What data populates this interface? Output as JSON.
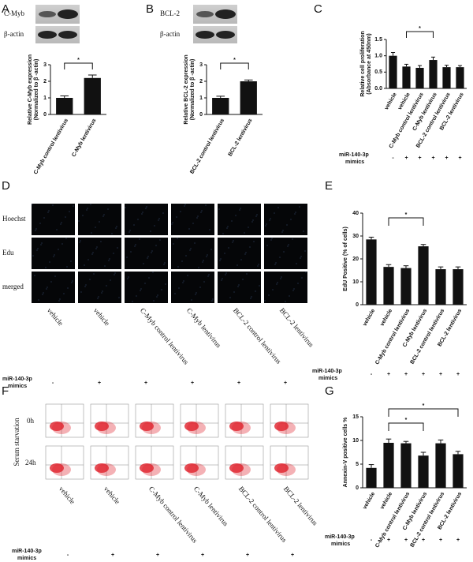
{
  "panels": {
    "letters": [
      "A",
      "B",
      "C",
      "D",
      "E",
      "F",
      "G"
    ]
  },
  "blots": [
    {
      "labels": [
        "C-Myb",
        "β-actin"
      ]
    },
    {
      "labels": [
        "BCL-2",
        "β-actin"
      ]
    }
  ],
  "edu_images": {
    "rows": [
      "Hoechst",
      "Edu",
      "merged"
    ],
    "columns": [
      "vehicle",
      "vehicle",
      "C-Myb control lentivirus",
      "C-Myb lentivirus",
      "BCL-2 control lentivirus",
      "BCL-2 lentivirus"
    ],
    "treatment_label": [
      "miR-140-3p",
      "mimics"
    ],
    "treatment": [
      "-",
      "+",
      "+",
      "+",
      "+",
      "+"
    ]
  },
  "flow_images": {
    "row_title": "Serum starvation",
    "rows": [
      "0h",
      "24h"
    ],
    "columns": [
      "vehicle",
      "vehicle",
      "C-Myb control lentivirus",
      "C-Myb lentivirus",
      "BCL-2 control lentivirus",
      "BCL-2 lentivirus"
    ],
    "treatment_label": [
      "miR-140-3p",
      "mimics"
    ],
    "treatment": [
      "-",
      "+",
      "+",
      "+",
      "+",
      "+"
    ]
  },
  "chart_data": [
    {
      "type": "bar",
      "ylabel": [
        "Relative C-Myb expression",
        "(Normalized to β -actin)"
      ],
      "categories": [
        "C-Myb control lentivirus",
        "C-Myb lentivirus"
      ],
      "values": [
        1.0,
        2.2
      ],
      "errors": [
        0.12,
        0.18
      ],
      "color": "#111111",
      "ylim": [
        0,
        3
      ],
      "yticks": [
        0,
        1,
        2,
        3
      ],
      "significance": [
        "*"
      ]
    },
    {
      "type": "bar",
      "ylabel": [
        "Relative BCL-2 expression",
        "(Normalized to β -actin)"
      ],
      "categories": [
        "BCL-2 control lentivirus",
        "BCL-2 lentivirus"
      ],
      "values": [
        1.0,
        2.0
      ],
      "errors": [
        0.1,
        0.08
      ],
      "color": "#111111",
      "ylim": [
        0,
        3
      ],
      "yticks": [
        0,
        1,
        2,
        3
      ],
      "significance": [
        "*"
      ]
    },
    {
      "type": "bar",
      "ylabel": [
        "Relative cell proliferation",
        "(Absorbance at 450nm)"
      ],
      "categories": [
        "vehicle",
        "vehicle",
        "C-Myb control lentivirus",
        "C-Myb lentivirus",
        "BCL-2 control lentivirus",
        "BCL-2 lentivirus"
      ],
      "values": [
        1.0,
        0.67,
        0.63,
        0.87,
        0.65,
        0.65
      ],
      "errors": [
        0.1,
        0.07,
        0.07,
        0.09,
        0.06,
        0.05
      ],
      "color": "#111111",
      "ylim": [
        0,
        1.5
      ],
      "yticks": [
        {
          "value": 0,
          "label": "0.0"
        },
        {
          "value": 0.5,
          "label": "0.5"
        },
        {
          "value": 1,
          "label": "1.0"
        },
        {
          "value": 1.5,
          "label": "1.5"
        }
      ],
      "significance": [
        "*"
      ],
      "treatment_label": [
        "miR-140-3p",
        "mimics"
      ],
      "treatment": [
        "-",
        "+",
        "+",
        "+",
        "+",
        "+"
      ]
    },
    {
      "type": "bar",
      "ylabel": [
        "EdU Positive (% of cells)"
      ],
      "categories": [
        "vehicle",
        "vehicle",
        "C-Myb control lentivirus",
        "C-Myb lentivirus",
        "BCL-2 control lentivirus",
        "BCL-2 lentivirus"
      ],
      "values": [
        28.5,
        16.5,
        16,
        25.5,
        15.5,
        15.5
      ],
      "errors": [
        1,
        1,
        1,
        0.8,
        1,
        1
      ],
      "color": "#111111",
      "ylim": [
        0,
        40
      ],
      "yticks": [
        0,
        10,
        20,
        30,
        40
      ],
      "significance": [
        "*"
      ],
      "treatment_label": [
        "miR-140-3p",
        "mimics"
      ],
      "treatment": [
        "-",
        "+",
        "+",
        "+",
        "+",
        "+"
      ]
    },
    {
      "type": "bar",
      "ylabel": [
        "Annexin-V positive cells %"
      ],
      "categories": [
        "vehicle",
        "vehicle",
        "C-Myb control lentivirus",
        "C-Myb lentivirus",
        "BCL-2 control lentivirus",
        "BCL-2 lentivirus"
      ],
      "values": [
        4.2,
        9.5,
        9.4,
        6.8,
        9.4,
        7.1
      ],
      "errors": [
        0.7,
        0.8,
        0.4,
        0.7,
        0.7,
        0.6
      ],
      "color": "#111111",
      "ylim": [
        0,
        15
      ],
      "yticks": [
        0,
        5,
        10,
        15
      ],
      "significance": [
        "*",
        "*"
      ],
      "treatment_label": [
        "miR-140-3p",
        "mimics"
      ],
      "treatment": [
        "-",
        "+",
        "+",
        "+",
        "+",
        "+"
      ]
    }
  ]
}
